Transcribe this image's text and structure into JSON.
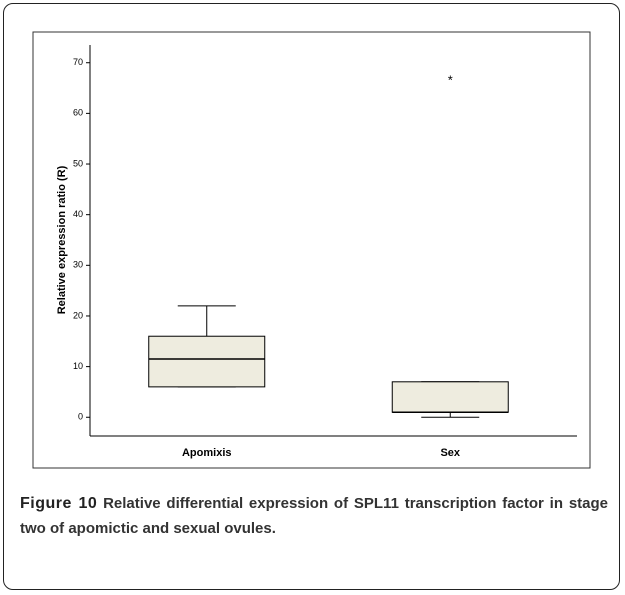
{
  "chart_data": {
    "type": "box",
    "ylabel": "Relative expression ratio (R)",
    "categories": [
      "Apomixis",
      "Sex"
    ],
    "boxes": [
      {
        "min": 6,
        "q1": 6,
        "median": 11.5,
        "q3": 16,
        "max": 22,
        "outliers": []
      },
      {
        "min": 0,
        "q1": 1,
        "median": 1,
        "q3": 7,
        "max": 7,
        "outliers": [
          67
        ]
      }
    ],
    "color": "#eeecdf",
    "ylim": [
      -3.7,
      73.5
    ],
    "yticks": [
      0,
      10,
      20,
      30,
      40,
      50,
      60,
      70
    ]
  },
  "caption": {
    "label": "Figure 10",
    "text": "Relative differential expression of SPL11 transcription factor in stage two of apomictic and sexual ovules."
  }
}
